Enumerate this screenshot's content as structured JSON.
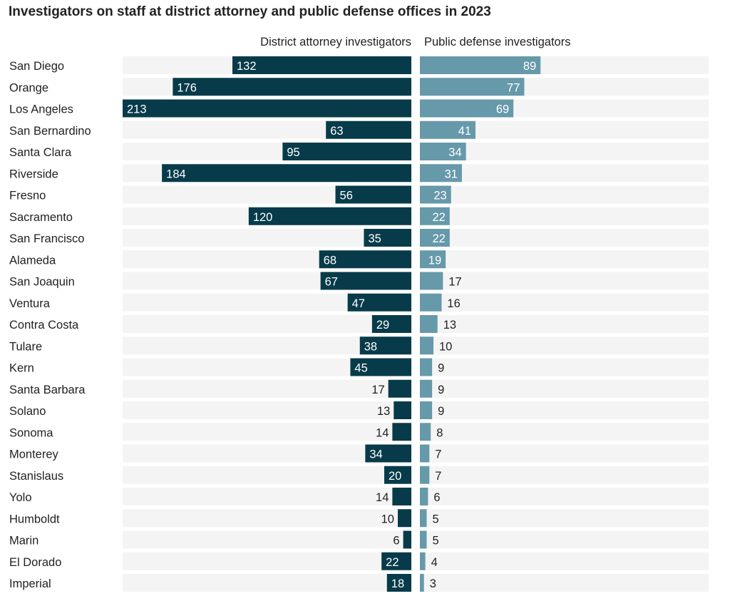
{
  "chart_data": {
    "type": "bar",
    "title": "Investigators on staff at district attorney and public defense offices in 2023",
    "categories": [
      "San Diego",
      "Orange",
      "Los Angeles",
      "San Bernardino",
      "Santa Clara",
      "Riverside",
      "Fresno",
      "Sacramento",
      "San Francisco",
      "Alameda",
      "San Joaquin",
      "Ventura",
      "Contra Costa",
      "Tulare",
      "Kern",
      "Santa Barbara",
      "Solano",
      "Sonoma",
      "Monterey",
      "Stanislaus",
      "Yolo",
      "Humboldt",
      "Marin",
      "El Dorado",
      "Imperial"
    ],
    "series": [
      {
        "name": "District attorney investigators",
        "color": "#073b4a",
        "values": [
          132,
          176,
          213,
          63,
          95,
          184,
          56,
          120,
          35,
          68,
          67,
          47,
          29,
          38,
          45,
          17,
          13,
          14,
          34,
          20,
          14,
          10,
          6,
          22,
          18
        ]
      },
      {
        "name": "Public defense investigators",
        "color": "#6699aa",
        "values": [
          89,
          77,
          69,
          41,
          34,
          31,
          23,
          22,
          22,
          19,
          17,
          16,
          13,
          10,
          9,
          9,
          9,
          8,
          7,
          7,
          6,
          5,
          5,
          4,
          3
        ]
      }
    ],
    "xlim": [
      0,
      213
    ],
    "background_color": "#f4f4f4"
  }
}
